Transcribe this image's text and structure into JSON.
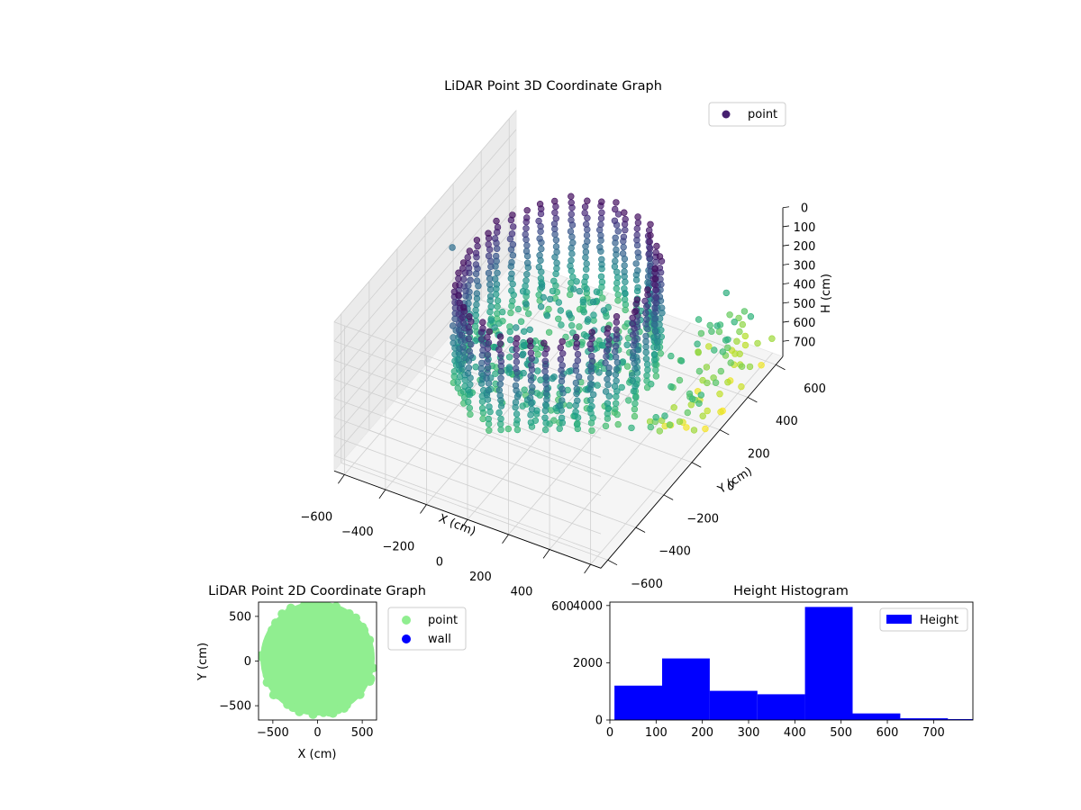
{
  "chart_data": [
    {
      "type": "scatter",
      "title": "LiDAR Point 3D Coordinate Graph",
      "xlabel": "X (cm)",
      "ylabel": "Y (cm)",
      "zlabel": "H (cm)",
      "xlim": [
        -650,
        650
      ],
      "ylim": [
        -650,
        650
      ],
      "zlim": [
        780,
        0
      ],
      "z_axis_inverted": true,
      "x_ticks": [
        -600,
        -400,
        -200,
        0,
        200,
        400,
        600
      ],
      "y_ticks": [
        -600,
        -400,
        -200,
        0,
        200,
        400,
        600
      ],
      "z_ticks": [
        0,
        100,
        200,
        300,
        400,
        500,
        600,
        700
      ],
      "colormap": "viridis",
      "legend": {
        "position": "top-right",
        "entries": [
          {
            "label": "point",
            "color": "#46206f"
          }
        ]
      },
      "series": [
        {
          "name": "point",
          "shape": "ring of vertical point columns",
          "ring_radius": 400,
          "column_count": 40,
          "height_range": [
            30,
            560
          ],
          "outliers": [
            {
              "x": -620,
              "y": 150,
              "h": 280
            }
          ]
        }
      ],
      "grid": true
    },
    {
      "type": "scatter",
      "title": "LiDAR Point 2D Coordinate Graph",
      "xlabel": "X (cm)",
      "ylabel": "Y (cm)",
      "xlim": [
        -660,
        660
      ],
      "ylim": [
        -660,
        660
      ],
      "x_ticks": [
        -500,
        0,
        500
      ],
      "y_ticks": [
        -500,
        0,
        500
      ],
      "legend": {
        "position": "outside-right",
        "entries": [
          {
            "label": "point",
            "color": "#90ee90"
          },
          {
            "label": "wall",
            "color": "#0000ff"
          }
        ]
      },
      "series": [
        {
          "name": "point",
          "color": "#90ee90",
          "shape": "filled disc",
          "radius": 640
        },
        {
          "name": "wall",
          "color": "#0000ff",
          "values": []
        }
      ]
    },
    {
      "type": "bar",
      "title": "Height Histogram",
      "xlabel": "",
      "ylabel": "",
      "xlim": [
        0,
        785
      ],
      "ylim": [
        0,
        4120
      ],
      "x_ticks": [
        0,
        100,
        200,
        300,
        400,
        500,
        600,
        700
      ],
      "y_ticks": [
        0,
        2000,
        4000
      ],
      "bin_edges": [
        10,
        113,
        216,
        319,
        422,
        525,
        628,
        731,
        834
      ],
      "values": [
        1200,
        2150,
        1020,
        900,
        3950,
        230,
        60,
        30
      ],
      "color": "#0000ff",
      "legend": {
        "position": "top-right",
        "entries": [
          {
            "label": "Height",
            "color": "#0000ff"
          }
        ]
      }
    }
  ]
}
